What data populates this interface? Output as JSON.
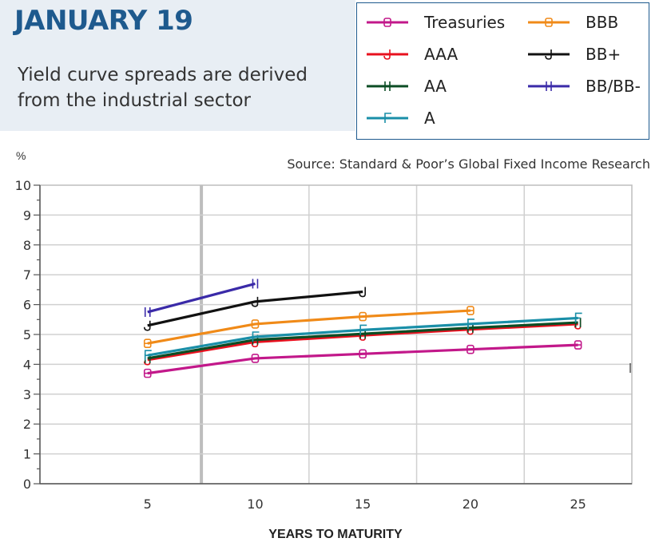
{
  "header": {
    "title": "JANUARY 19",
    "subtitle": "Yield curve spreads are derived from the industrial sector"
  },
  "source": "Source: Standard & Poor’s Global Fixed Income Research",
  "chart_data": {
    "type": "line",
    "title": "",
    "xlabel": "YEARS TO MATURITY",
    "ylabel": "%",
    "x_ticks": [
      5,
      10,
      15,
      20,
      25
    ],
    "y_ticks": [
      0,
      1,
      2,
      3,
      4,
      5,
      6,
      7,
      8,
      9,
      10
    ],
    "xlim": [
      0,
      27.5
    ],
    "ylim": [
      0,
      10
    ],
    "grid": true,
    "legend_position": "top-right",
    "series": [
      {
        "name": "Treasuries",
        "color": "#c2188a",
        "marker": "B",
        "x": [
          5,
          10,
          15,
          20,
          25
        ],
        "values": [
          3.7,
          4.2,
          4.35,
          4.5,
          4.65
        ]
      },
      {
        "name": "AAA",
        "color": "#e8101e",
        "marker": "J",
        "x": [
          5,
          10,
          15,
          20,
          25
        ],
        "values": [
          4.15,
          4.75,
          4.97,
          5.17,
          5.35
        ]
      },
      {
        "name": "AA",
        "color": "#0b4d24",
        "marker": "H",
        "x": [
          5,
          10,
          15,
          20,
          25
        ],
        "values": [
          4.2,
          4.82,
          5.02,
          5.22,
          5.4
        ]
      },
      {
        "name": "A",
        "color": "#1a8fa8",
        "marker": "F",
        "x": [
          5,
          10,
          15,
          20,
          25
        ],
        "values": [
          4.3,
          4.92,
          5.15,
          5.35,
          5.55
        ]
      },
      {
        "name": "BBB",
        "color": "#f08a18",
        "marker": "B",
        "x": [
          5,
          10,
          15,
          20
        ],
        "values": [
          4.7,
          5.35,
          5.6,
          5.8
        ]
      },
      {
        "name": "BB+",
        "color": "#111111",
        "marker": "J",
        "x": [
          5,
          10,
          15
        ],
        "values": [
          5.3,
          6.1,
          6.43
        ]
      },
      {
        "name": "BB/BB-",
        "color": "#3a2aa8",
        "marker": "H",
        "x": [
          5,
          10
        ],
        "values": [
          5.75,
          6.7
        ]
      }
    ]
  }
}
